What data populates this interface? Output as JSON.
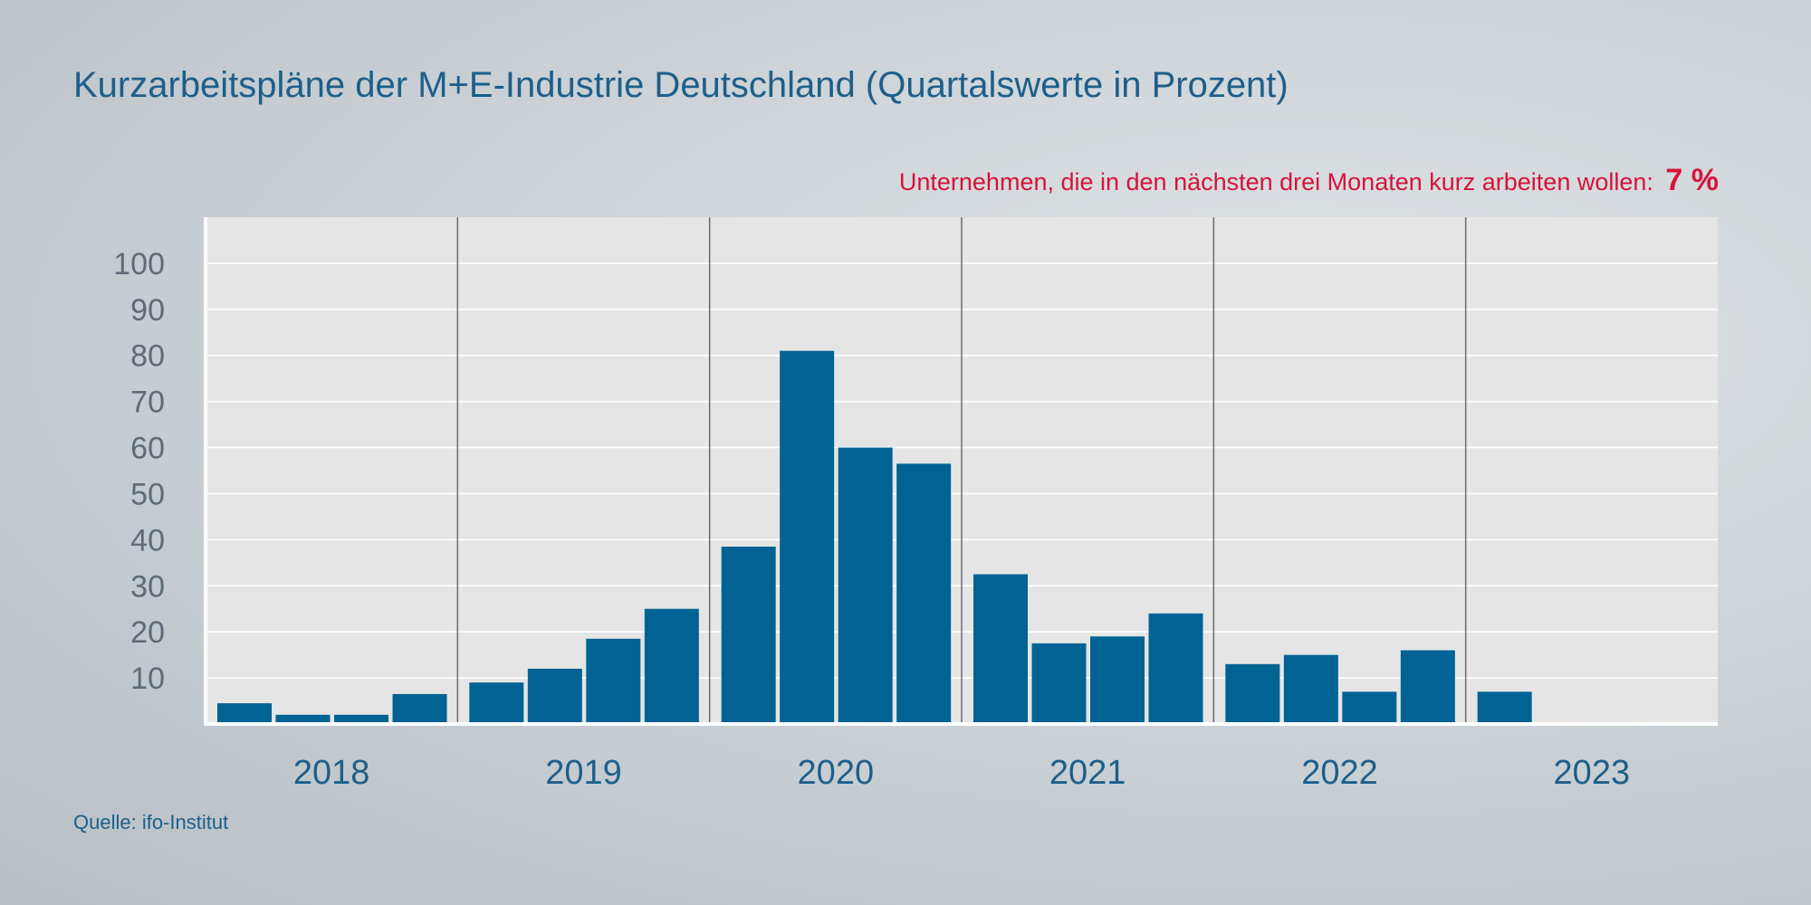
{
  "header": {
    "title": "Kurzarbeitspläne der M+E-Industrie Deutschland (Quartalswerte in Prozent)",
    "subtitle_text": "Unternehmen, die in den nächsten drei Monaten kurz arbeiten wollen:",
    "subtitle_value": "7 %"
  },
  "footer": {
    "source": "Quelle: ifo-Institut"
  },
  "colors": {
    "bar": "#006394",
    "plot_background": "#e5e5e5",
    "gridline": "#ffffff",
    "divider": "#6b6b6b",
    "highlight": "#d6133a",
    "title": "#1d5f8a"
  },
  "chart_data": {
    "type": "bar",
    "title": "Kurzarbeitspläne der M+E-Industrie Deutschland (Quartalswerte in Prozent)",
    "xlabel": "",
    "ylabel": "",
    "ylim": [
      0,
      110
    ],
    "yticks": [
      10,
      20,
      30,
      40,
      50,
      60,
      70,
      80,
      90,
      100
    ],
    "grid": true,
    "quarters_per_year": 4,
    "years": [
      "2018",
      "2019",
      "2020",
      "2021",
      "2022",
      "2023"
    ],
    "categories": [
      "2018 Q1",
      "2018 Q2",
      "2018 Q3",
      "2018 Q4",
      "2019 Q1",
      "2019 Q2",
      "2019 Q3",
      "2019 Q4",
      "2020 Q1",
      "2020 Q2",
      "2020 Q3",
      "2020 Q4",
      "2021 Q1",
      "2021 Q2",
      "2021 Q3",
      "2021 Q4",
      "2022 Q1",
      "2022 Q2",
      "2022 Q3",
      "2022 Q4",
      "2023 Q1"
    ],
    "values": [
      4.5,
      2,
      2,
      6.5,
      9,
      12,
      18.5,
      25,
      38.5,
      81,
      60,
      56.5,
      32.5,
      17.5,
      19,
      24,
      13,
      15,
      7,
      16,
      7
    ]
  }
}
